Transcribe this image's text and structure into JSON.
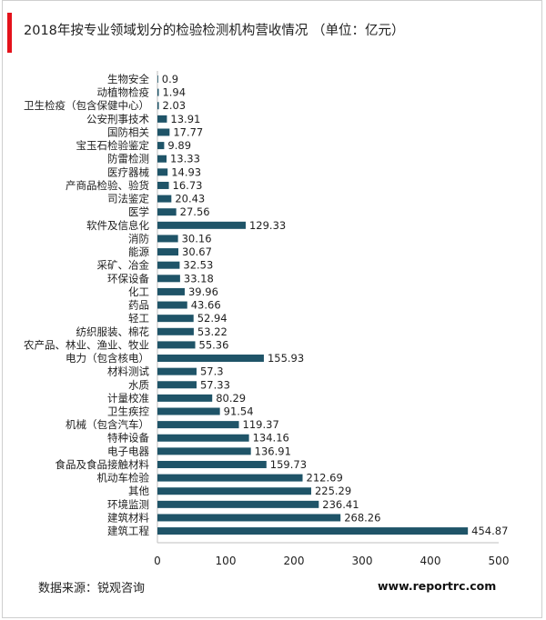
{
  "header": {
    "title": "2018年按专业领域划分的检验检测机构营收情况   （单位：亿元）",
    "accent_color": "#e4121b"
  },
  "footer": {
    "source": "数据来源：锐观咨询",
    "website": "www.reportrc.com"
  },
  "chart_data": {
    "type": "bar",
    "orientation": "horizontal",
    "title": "2018年按专业领域划分的检验检测机构营收情况   （单位：亿元）",
    "xlabel": "",
    "ylabel": "",
    "xlim": [
      0,
      500
    ],
    "xticks": [
      0,
      100,
      200,
      300,
      400,
      500
    ],
    "grid": false,
    "bar_color": "#1f5468",
    "categories": [
      "生物安全",
      "动植物检疫",
      "卫生检疫（包含保健中心）",
      "公安刑事技术",
      "国防相关",
      "宝玉石检验鉴定",
      "防雷检测",
      "医疗器械",
      "产商品检验、验货",
      "司法鉴定",
      "医学",
      "软件及信息化",
      "消防",
      "能源",
      "采矿、冶金",
      "环保设备",
      "化工",
      "药品",
      "轻工",
      "纺织服装、棉花",
      "农产品、林业、渔业、牧业",
      "电力（包含核电）",
      "材料测试",
      "水质",
      "计量校准",
      "卫生疾控",
      "机械（包含汽车）",
      "特种设备",
      "电子电器",
      "食品及食品接触材料",
      "机动车检验",
      "其他",
      "环境监测",
      "建筑材料",
      "建筑工程"
    ],
    "values": [
      0.9,
      1.94,
      2.03,
      13.91,
      17.77,
      9.89,
      13.33,
      14.93,
      16.73,
      20.43,
      27.56,
      129.33,
      30.16,
      30.67,
      32.53,
      33.18,
      39.96,
      43.66,
      52.94,
      53.22,
      55.36,
      155.93,
      57.3,
      57.33,
      80.29,
      91.54,
      119.37,
      134.16,
      136.91,
      159.73,
      212.69,
      225.29,
      236.41,
      268.26,
      454.87
    ],
    "value_labels": [
      "0.9",
      "1.94",
      "2.03",
      "13.91",
      "17.77",
      "9.89",
      "13.33",
      "14.93",
      "16.73",
      "20.43",
      "27.56",
      "129.33",
      "30.16",
      "30.67",
      "32.53",
      "33.18",
      "39.96",
      "43.66",
      "52.94",
      "53.22",
      "55.36",
      "155.93",
      "57.3",
      "57.33",
      "80.29",
      "91.54",
      "119.37",
      "134.16",
      "136.91",
      "159.73",
      "212.69",
      "225.29",
      "236.41",
      "268.26",
      "454.87"
    ]
  }
}
